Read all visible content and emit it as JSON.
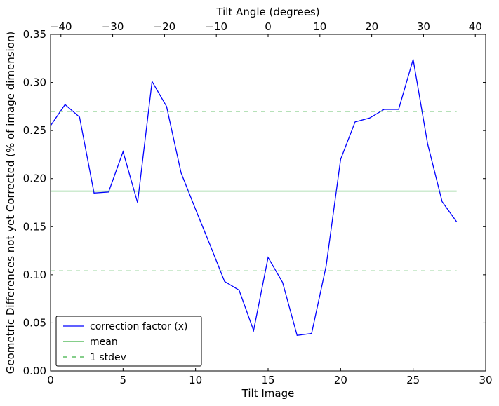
{
  "chart_data": {
    "type": "line",
    "xlabel": "Tilt Image",
    "x2label": "Tilt Angle (degrees)",
    "ylabel": "Geometric Differences not yet Corrected (% of image dimension)",
    "xlim": [
      0,
      30
    ],
    "ylim": [
      0,
      0.35
    ],
    "x2lim": [
      -42,
      42
    ],
    "grid": false,
    "legend_position": "bottom-left",
    "x_ticks": [
      "0",
      "5",
      "10",
      "15",
      "20",
      "25",
      "30"
    ],
    "x_tick_values": [
      0,
      5,
      10,
      15,
      20,
      25,
      30
    ],
    "x2_ticks": [
      "−40",
      "−30",
      "−20",
      "−10",
      "0",
      "10",
      "20",
      "30",
      "40"
    ],
    "x2_tick_values": [
      -40,
      -30,
      -20,
      -10,
      0,
      10,
      20,
      30,
      40
    ],
    "y_ticks": [
      "0.00",
      "0.05",
      "0.10",
      "0.15",
      "0.20",
      "0.25",
      "0.30",
      "0.35"
    ],
    "y_tick_values": [
      0,
      0.05,
      0.1,
      0.15,
      0.2,
      0.25,
      0.3,
      0.35
    ],
    "series": [
      {
        "name": "correction factor (x)",
        "color": "#0000ff",
        "style": "solid",
        "x": [
          0,
          1,
          2,
          3,
          4,
          5,
          6,
          7,
          8,
          9,
          10,
          11,
          12,
          13,
          14,
          15,
          16,
          17,
          18,
          19,
          20,
          21,
          22,
          23,
          24,
          25,
          26,
          27,
          28
        ],
        "values": [
          0.255,
          0.277,
          0.264,
          0.185,
          0.186,
          0.228,
          0.175,
          0.301,
          0.275,
          0.206,
          0.168,
          0.131,
          0.093,
          0.084,
          0.042,
          0.118,
          0.092,
          0.037,
          0.039,
          0.109,
          0.22,
          0.259,
          0.263,
          0.272,
          0.272,
          0.324,
          0.236,
          0.176,
          0.155
        ]
      },
      {
        "name": "mean",
        "color": "#3cb043",
        "style": "solid",
        "x": [
          0,
          28
        ],
        "values": [
          0.187,
          0.187
        ]
      },
      {
        "name": "1 stdev",
        "color": "#3cb043",
        "style": "dashed",
        "x": [
          0,
          28
        ],
        "values": [
          0.27,
          0.27
        ]
      },
      {
        "name": "",
        "color": "#3cb043",
        "style": "dashed",
        "x": [
          0,
          28
        ],
        "values": [
          0.104,
          0.104
        ]
      }
    ],
    "legend": [
      "correction factor (x)",
      "mean",
      "1 stdev"
    ]
  }
}
